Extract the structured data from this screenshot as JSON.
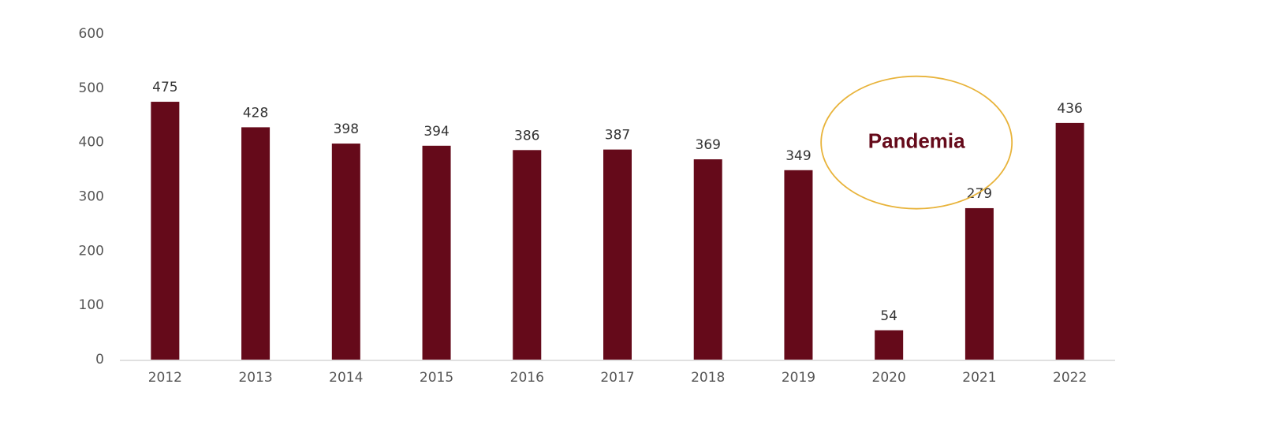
{
  "chart_data": {
    "type": "bar",
    "title": "",
    "xlabel": "",
    "ylabel": "",
    "categories": [
      "2012",
      "2013",
      "2014",
      "2015",
      "2016",
      "2017",
      "2018",
      "2019",
      "2020",
      "2021",
      "2022"
    ],
    "values": [
      475,
      428,
      398,
      394,
      386,
      387,
      369,
      349,
      54,
      279,
      436
    ],
    "data_labels": [
      "475",
      "428",
      "398",
      "394",
      "386",
      "387",
      "369",
      "349",
      "54",
      "279",
      "436"
    ],
    "ylim": [
      0,
      600
    ],
    "yticks": [
      "0",
      "100",
      "200",
      "300",
      "400",
      "500",
      "600"
    ],
    "grid": false,
    "legend": "none",
    "bar_color": "#650a1a",
    "annotation": {
      "text": "Pandemia",
      "shape": "ellipse",
      "color": "#650a1a",
      "outline_color": "#e8b33a",
      "around_category": "2020",
      "center_value": 400
    }
  }
}
